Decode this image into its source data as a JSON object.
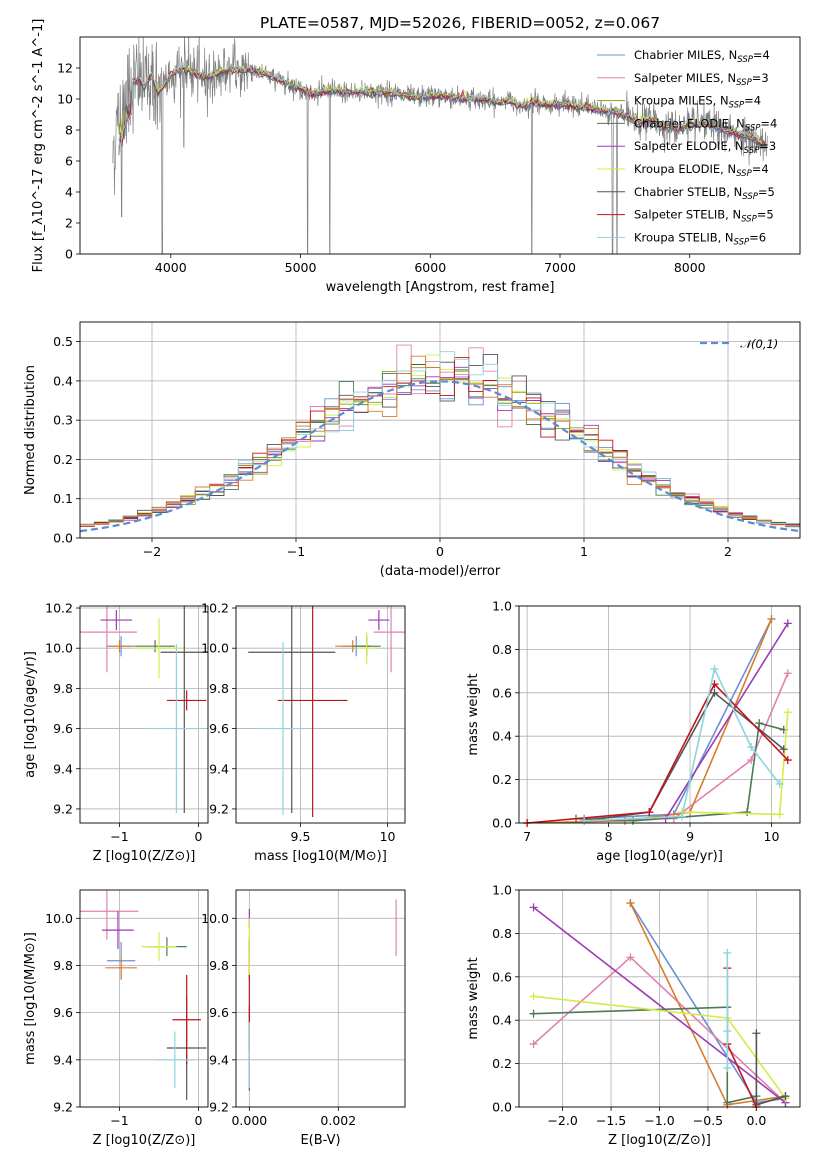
{
  "chart_data": [
    {
      "type": "line",
      "title": "PLATE=0587, MJD=52026, FIBERID=0052, z=0.067",
      "xlabel": "wavelength [Angstrom, rest frame]",
      "ylabel": "Flux [f_λ10^-17 erg cm^-2 s^-1 A^-1]",
      "xlim": [
        3300,
        8850
      ],
      "ylim": [
        0,
        14
      ],
      "xticks": [
        4000,
        5000,
        6000,
        7000,
        8000
      ],
      "yticks": [
        0,
        2,
        4,
        6,
        8,
        10,
        12
      ],
      "grid": false,
      "legend_position": "top-right",
      "legend": [
        {
          "name": "Chabrier MILES, N_SSP=4",
          "color": "#6b8fd6"
        },
        {
          "name": "Salpeter MILES, N_SSP=3",
          "color": "#e082b0"
        },
        {
          "name": "Kroupa MILES, N_SSP=4",
          "color": "#8a9e1c"
        },
        {
          "name": "Chabrier ELODIE, N_SSP=4",
          "color": "#4d7a52"
        },
        {
          "name": "Salpeter ELODIE, N_SSP=3",
          "color": "#9c3bb5"
        },
        {
          "name": "Kroupa ELODIE, N_SSP=4",
          "color": "#d4ec4a"
        },
        {
          "name": "Chabrier STELIB, N_SSP=5",
          "color": "#555555"
        },
        {
          "name": "Salpeter STELIB, N_SSP=5",
          "color": "#c0151b"
        },
        {
          "name": "Kroupa STELIB, N_SSP=6",
          "color": "#8ed4dc"
        }
      ],
      "data_color": "#808080",
      "model_color": "#7fd8dd",
      "spectrum": [
        [
          3550,
          6.4
        ],
        [
          3600,
          8.8
        ],
        [
          3650,
          10.2
        ],
        [
          3700,
          11.0
        ],
        [
          3750,
          11.3
        ],
        [
          3800,
          10.8
        ],
        [
          3850,
          11.6
        ],
        [
          3900,
          10.4
        ],
        [
          3950,
          10.9
        ],
        [
          4000,
          11.6
        ],
        [
          4100,
          12.0
        ],
        [
          4200,
          11.6
        ],
        [
          4300,
          11.4
        ],
        [
          4400,
          11.8
        ],
        [
          4500,
          11.9
        ],
        [
          4600,
          11.9
        ],
        [
          4700,
          11.7
        ],
        [
          4800,
          11.4
        ],
        [
          4900,
          11.0
        ],
        [
          5000,
          10.7
        ],
        [
          5100,
          10.3
        ],
        [
          5200,
          10.5
        ],
        [
          5300,
          10.5
        ],
        [
          5400,
          10.4
        ],
        [
          5500,
          10.5
        ],
        [
          5600,
          10.4
        ],
        [
          5700,
          10.4
        ],
        [
          5800,
          10.2
        ],
        [
          5900,
          10.1
        ],
        [
          6000,
          10.2
        ],
        [
          6100,
          10.2
        ],
        [
          6200,
          10.1
        ],
        [
          6300,
          10.0
        ],
        [
          6400,
          10.0
        ],
        [
          6500,
          9.8
        ],
        [
          6600,
          9.9
        ],
        [
          6700,
          9.6
        ],
        [
          6800,
          9.8
        ],
        [
          6900,
          9.6
        ],
        [
          7000,
          9.7
        ],
        [
          7100,
          9.5
        ],
        [
          7200,
          9.5
        ],
        [
          7300,
          9.3
        ],
        [
          7400,
          9.2
        ],
        [
          7500,
          9.0
        ],
        [
          7600,
          8.5
        ],
        [
          7700,
          8.7
        ],
        [
          7800,
          8.2
        ],
        [
          7900,
          8.1
        ],
        [
          8000,
          8.3
        ],
        [
          8100,
          8.4
        ],
        [
          8200,
          8.2
        ],
        [
          8300,
          7.9
        ],
        [
          8400,
          7.7
        ],
        [
          8500,
          7.4
        ],
        [
          8600,
          6.8
        ]
      ],
      "spectrum_dips": [
        [
          3620,
          2.4
        ],
        [
          3870,
          8.6
        ],
        [
          3934,
          0
        ],
        [
          4101,
          6.9
        ],
        [
          4861,
          11.5
        ],
        [
          5007,
          10.1
        ],
        [
          5055,
          0
        ],
        [
          5225,
          0
        ],
        [
          6565,
          9.9
        ],
        [
          6783,
          0
        ],
        [
          7405,
          0
        ],
        [
          7440,
          0
        ],
        [
          8240,
          8.7
        ]
      ]
    },
    {
      "type": "histogram",
      "xlabel": "(data-model)/error",
      "ylabel": "Normed distribution",
      "xlim": [
        -2.5,
        2.5
      ],
      "ylim": [
        0,
        0.55
      ],
      "xticks": [
        -2,
        -1,
        0,
        1,
        2
      ],
      "yticks": [
        0.0,
        0.1,
        0.2,
        0.3,
        0.4,
        0.5
      ],
      "grid": true,
      "legend_position": "top-right",
      "reference_curve": {
        "name": "𝒩(0,1)",
        "mean": 0,
        "sigma": 1,
        "color": "#5a8bd6"
      },
      "bin_edges_start": -2.5,
      "bin_width": 0.1,
      "bins_per_series": 50
    },
    {
      "type": "scatter",
      "xlabel": "Z [log10(Z/Z⊙)]",
      "ylabel": "age  [log10(age/yr)]",
      "xlim": [
        -1.5,
        0.12
      ],
      "ylim": [
        9.13,
        10.21
      ],
      "xticks": [
        -1,
        0
      ],
      "yticks": [
        9.2,
        9.4,
        9.6,
        9.8,
        10.0,
        10.2
      ],
      "grid": true,
      "points": [
        {
          "color": "#6b8fd6",
          "x": -0.98,
          "xerr": 0.18,
          "y": 10.01,
          "yerr": 0.05
        },
        {
          "color": "#e082b0",
          "x": -1.16,
          "xerr": 0.38,
          "y": 10.08,
          "yerr": 0.2
        },
        {
          "color": "#d97b2c",
          "x": -1.0,
          "xerr": 0.15,
          "y": 10.01,
          "yerr": 0.03
        },
        {
          "color": "#4d7a52",
          "x": -0.55,
          "xerr": 0.25,
          "y": 10.01,
          "yerr": 0.03
        },
        {
          "color": "#9c3bb5",
          "x": -1.04,
          "xerr": 0.2,
          "y": 10.14,
          "yerr": 0.05
        },
        {
          "color": "#d4ec4a",
          "x": -0.5,
          "xerr": 0.35,
          "y": 10.0,
          "yerr": 0.15
        },
        {
          "color": "#555555",
          "x": -0.18,
          "xerr": 0.3,
          "y": 9.98,
          "yerr": 0.8
        },
        {
          "color": "#c0151b",
          "x": -0.15,
          "xerr": 0.25,
          "y": 9.74,
          "yerr": 0.05
        },
        {
          "color": "#8ed4dc",
          "x": -0.28,
          "xerr": 0.35,
          "y": 9.6,
          "yerr": 0.42
        }
      ]
    },
    {
      "type": "scatter",
      "xlabel": "mass [log10(M/M⊙)]",
      "xlim": [
        9.13,
        10.1
      ],
      "ylim": [
        9.13,
        10.21
      ],
      "xticks": [
        9.5,
        10.0
      ],
      "yticks": [
        9.2,
        9.4,
        9.6,
        9.8,
        10.0,
        10.2
      ],
      "grid": true,
      "points": [
        {
          "color": "#6b8fd6",
          "x": 9.82,
          "xerr": 0.08,
          "y": 10.01,
          "yerr": 0.05
        },
        {
          "color": "#e082b0",
          "x": 10.02,
          "xerr": 0.1,
          "y": 10.08,
          "yerr": 0.2
        },
        {
          "color": "#d97b2c",
          "x": 9.8,
          "xerr": 0.1,
          "y": 10.01,
          "yerr": 0.03
        },
        {
          "color": "#4d7a52",
          "x": 9.88,
          "xerr": 0.08,
          "y": 10.01,
          "yerr": 0.05
        },
        {
          "color": "#9c3bb5",
          "x": 9.95,
          "xerr": 0.06,
          "y": 10.14,
          "yerr": 0.05
        },
        {
          "color": "#d4ec4a",
          "x": 9.88,
          "xerr": 0.06,
          "y": 10.0,
          "yerr": 0.08
        },
        {
          "color": "#555555",
          "x": 9.45,
          "xerr": 0.25,
          "y": 9.98,
          "yerr": 0.8
        },
        {
          "color": "#c0151b",
          "x": 9.57,
          "xerr": 0.2,
          "y": 9.74,
          "yerr": 0.58
        },
        {
          "color": "#8ed4dc",
          "x": 9.4,
          "xerr": 0.14,
          "y": 9.6,
          "yerr": 0.43
        }
      ]
    },
    {
      "type": "line",
      "xlabel": "age  [log10(age/yr)]",
      "ylabel": "mass weight",
      "xlim": [
        6.9,
        10.35
      ],
      "ylim": [
        0,
        1
      ],
      "xticks": [
        7,
        8,
        9,
        10
      ],
      "yticks": [
        0.0,
        0.2,
        0.4,
        0.6,
        0.8,
        1.0
      ],
      "grid": true,
      "series": [
        {
          "color": "#6b8fd6",
          "x": [
            7.7,
            8.8,
            10.0
          ],
          "y": [
            0.02,
            0.04,
            0.94
          ]
        },
        {
          "color": "#e082b0",
          "x": [
            8.8,
            9.75,
            10.2
          ],
          "y": [
            0.02,
            0.29,
            0.69
          ]
        },
        {
          "color": "#d97b2c",
          "x": [
            7.0,
            8.2,
            9.0,
            10.0
          ],
          "y": [
            0.0,
            0.01,
            0.05,
            0.94
          ]
        },
        {
          "color": "#4d7a52",
          "x": [
            7.6,
            8.3,
            9.7,
            9.85,
            10.15
          ],
          "y": [
            0.02,
            0.01,
            0.05,
            0.46,
            0.43
          ]
        },
        {
          "color": "#9c3bb5",
          "x": [
            8.7,
            10.2
          ],
          "y": [
            0.02,
            0.92
          ]
        },
        {
          "color": "#d4ec4a",
          "x": [
            8.9,
            10.1,
            10.2
          ],
          "y": [
            0.05,
            0.04,
            0.51
          ]
        },
        {
          "color": "#555555",
          "x": [
            7.7,
            8.5,
            9.3,
            10.15
          ],
          "y": [
            0.01,
            0.05,
            0.6,
            0.34
          ]
        },
        {
          "color": "#c0151b",
          "x": [
            7.0,
            8.5,
            9.3,
            10.2
          ],
          "y": [
            0.0,
            0.05,
            0.64,
            0.29
          ]
        },
        {
          "color": "#8ed4dc",
          "x": [
            7.7,
            8.9,
            9.3,
            9.75,
            10.1
          ],
          "y": [
            0.01,
            0.03,
            0.71,
            0.35,
            0.18
          ]
        }
      ]
    },
    {
      "type": "scatter",
      "xlabel": "Z [log10(Z/Z⊙)]",
      "ylabel": "mass [log10(M/M⊙)]",
      "xlim": [
        -1.5,
        0.12
      ],
      "ylim": [
        9.2,
        10.12
      ],
      "xticks": [
        -1,
        0
      ],
      "yticks": [
        9.2,
        9.4,
        9.6,
        9.8,
        10.0
      ],
      "grid": true,
      "points": [
        {
          "color": "#6b8fd6",
          "x": -0.98,
          "xerr": 0.18,
          "y": 9.82,
          "yerr": 0.08
        },
        {
          "color": "#e082b0",
          "x": -1.16,
          "xerr": 0.4,
          "y": 10.03,
          "yerr": 0.12
        },
        {
          "color": "#d97b2c",
          "x": -0.98,
          "xerr": 0.2,
          "y": 9.79,
          "yerr": 0.05
        },
        {
          "color": "#4d7a52",
          "x": -0.4,
          "xerr": 0.25,
          "y": 9.88,
          "yerr": 0.04
        },
        {
          "color": "#9c3bb5",
          "x": -1.02,
          "xerr": 0.2,
          "y": 9.95,
          "yerr": 0.08
        },
        {
          "color": "#d4ec4a",
          "x": -0.5,
          "xerr": 0.22,
          "y": 9.88,
          "yerr": 0.06
        },
        {
          "color": "#555555",
          "x": -0.15,
          "xerr": 0.25,
          "y": 9.45,
          "yerr": 0.22
        },
        {
          "color": "#c0151b",
          "x": -0.15,
          "xerr": 0.18,
          "y": 9.57,
          "yerr": 0.19
        },
        {
          "color": "#8ed4dc",
          "x": -0.3,
          "xerr": 0.25,
          "y": 9.4,
          "yerr": 0.12
        }
      ]
    },
    {
      "type": "scatter",
      "xlabel": "E(B-V)",
      "xlim": [
        -0.0003,
        0.0035
      ],
      "ylim": [
        9.2,
        10.12
      ],
      "xticks": [
        0.0,
        0.002
      ],
      "xtick_labels": [
        "0.000",
        "0.002"
      ],
      "yticks": [
        9.2,
        9.4,
        9.6,
        9.8,
        10.0
      ],
      "grid": true,
      "points": [
        {
          "color": "#6b8fd6",
          "x": 0.0,
          "xerr": 0,
          "y": 9.82,
          "yerr": 0.08
        },
        {
          "color": "#e082b0",
          "x": 0.0033,
          "xerr": 0,
          "y": 9.96,
          "yerr": 0.12
        },
        {
          "color": "#d97b2c",
          "x": 0.0,
          "xerr": 0,
          "y": 9.79,
          "yerr": 0.05
        },
        {
          "color": "#4d7a52",
          "x": 0.0,
          "xerr": 0,
          "y": 9.88,
          "yerr": 0.04
        },
        {
          "color": "#9c3bb5",
          "x": 0.0,
          "xerr": 0,
          "y": 10.0,
          "yerr": 0.04
        },
        {
          "color": "#d4ec4a",
          "x": 0.0,
          "xerr": 0,
          "y": 9.88,
          "yerr": 0.12
        },
        {
          "color": "#555555",
          "x": 0.0,
          "xerr": 0,
          "y": 9.45,
          "yerr": 0.18
        },
        {
          "color": "#c0151b",
          "x": 0.0,
          "xerr": 0,
          "y": 9.6,
          "yerr": 0.16
        },
        {
          "color": "#8ed4dc",
          "x": 0.0,
          "xerr": 0,
          "y": 9.42,
          "yerr": 0.14
        }
      ]
    },
    {
      "type": "line",
      "xlabel": "Z [log10(Z/Z⊙)]",
      "ylabel": "mass weight",
      "xlim": [
        -2.45,
        0.45
      ],
      "ylim": [
        0,
        1
      ],
      "xticks": [
        -2.0,
        -1.5,
        -1.0,
        -0.5,
        0.0
      ],
      "yticks": [
        0.0,
        0.2,
        0.4,
        0.6,
        0.8,
        1.0
      ],
      "grid": true,
      "series": [
        {
          "color": "#6b8fd6",
          "x": [
            -1.3,
            0.0,
            0.3
          ],
          "y": [
            0.94,
            0.02,
            0.04
          ]
        },
        {
          "color": "#e082b0",
          "x": [
            -2.3,
            -1.3,
            0.3
          ],
          "y": [
            0.29,
            0.69,
            0.02
          ]
        },
        {
          "color": "#d97b2c",
          "x": [
            -1.3,
            -0.3,
            0.3
          ],
          "y": [
            0.94,
            0.01,
            0.05
          ]
        },
        {
          "color": "#4d7a52",
          "x": [
            -2.3,
            -0.3,
            -0.3,
            0.0
          ],
          "y": [
            0.43,
            0.46,
            0.02,
            0.05
          ]
        },
        {
          "color": "#9c3bb5",
          "x": [
            -2.3,
            0.3
          ],
          "y": [
            0.92,
            0.02
          ]
        },
        {
          "color": "#d4ec4a",
          "x": [
            -2.3,
            -0.3,
            0.3
          ],
          "y": [
            0.51,
            0.41,
            0.04
          ]
        },
        {
          "color": "#555555",
          "x": [
            0.0,
            0.0,
            0.3
          ],
          "y": [
            0.34,
            0.01,
            0.05
          ]
        },
        {
          "color": "#c0151b",
          "x": [
            -0.3,
            -0.3,
            0.0
          ],
          "y": [
            0.64,
            0.29,
            0.0
          ]
        },
        {
          "color": "#8ed4dc",
          "x": [
            -0.3,
            -0.3,
            -0.3
          ],
          "y": [
            0.71,
            0.35,
            0.18
          ]
        }
      ]
    }
  ]
}
